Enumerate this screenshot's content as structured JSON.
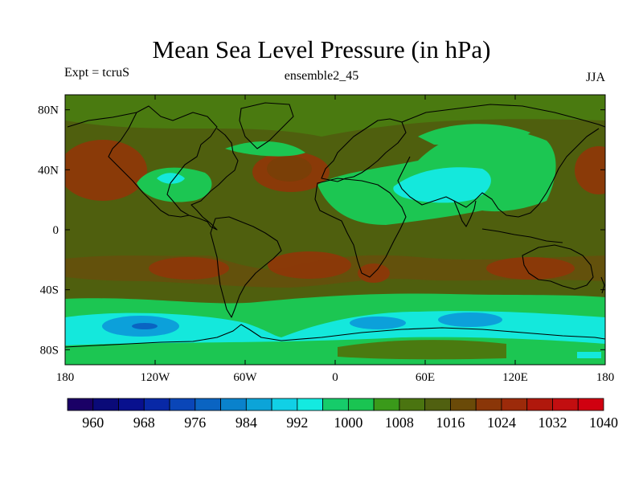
{
  "figure": {
    "title": "Mean Sea Level Pressure (in hPa)",
    "left_subtitle": "Expt = tcruS",
    "center_subtitle": "ensemble2_45",
    "right_subtitle": "JJA"
  },
  "axes": {
    "lon_range": [
      -180,
      180
    ],
    "lat_range": [
      -90,
      90
    ],
    "lon_ticks": [
      {
        "value": -180,
        "label": "180"
      },
      {
        "value": -120,
        "label": "120W"
      },
      {
        "value": -60,
        "label": "60W"
      },
      {
        "value": 0,
        "label": "0"
      },
      {
        "value": 60,
        "label": "60E"
      },
      {
        "value": 120,
        "label": "120E"
      },
      {
        "value": 180,
        "label": "180"
      }
    ],
    "lat_ticks": [
      {
        "value": 80,
        "label": "80N"
      },
      {
        "value": 40,
        "label": "40N"
      },
      {
        "value": 0,
        "label": "0"
      },
      {
        "value": -40,
        "label": "40S"
      },
      {
        "value": -80,
        "label": "80S"
      }
    ]
  },
  "colorbar": {
    "levels": [
      960,
      964,
      968,
      972,
      976,
      980,
      984,
      988,
      992,
      996,
      1000,
      1004,
      1008,
      1012,
      1016,
      1020,
      1024,
      1028,
      1032,
      1036,
      1040
    ],
    "labels": [
      "960",
      "968",
      "976",
      "984",
      "992",
      "1000",
      "1008",
      "1016",
      "1024",
      "1032",
      "1040"
    ],
    "colors": [
      "#1a0066",
      "#0a0a78",
      "#08108e",
      "#0828a6",
      "#0a46b8",
      "#0a64c2",
      "#0a82cc",
      "#0ca4d8",
      "#11d0e6",
      "#14eae0",
      "#16cc6a",
      "#1ac452",
      "#3a9a1a",
      "#4a7410",
      "#506010",
      "#6a4a08",
      "#8a3608",
      "#9c2a0a",
      "#b0180c",
      "#c20e10",
      "#d00010"
    ]
  },
  "fill_colors": {
    "background": "#4f5f0e",
    "olive_light": "#4a7a10",
    "green": "#1cc652",
    "cyan": "#14e8dc",
    "blue": "#0ca0da",
    "brown": "#8a3a08",
    "darkbrown": "#6a4406",
    "land_outline": "#000000"
  }
}
